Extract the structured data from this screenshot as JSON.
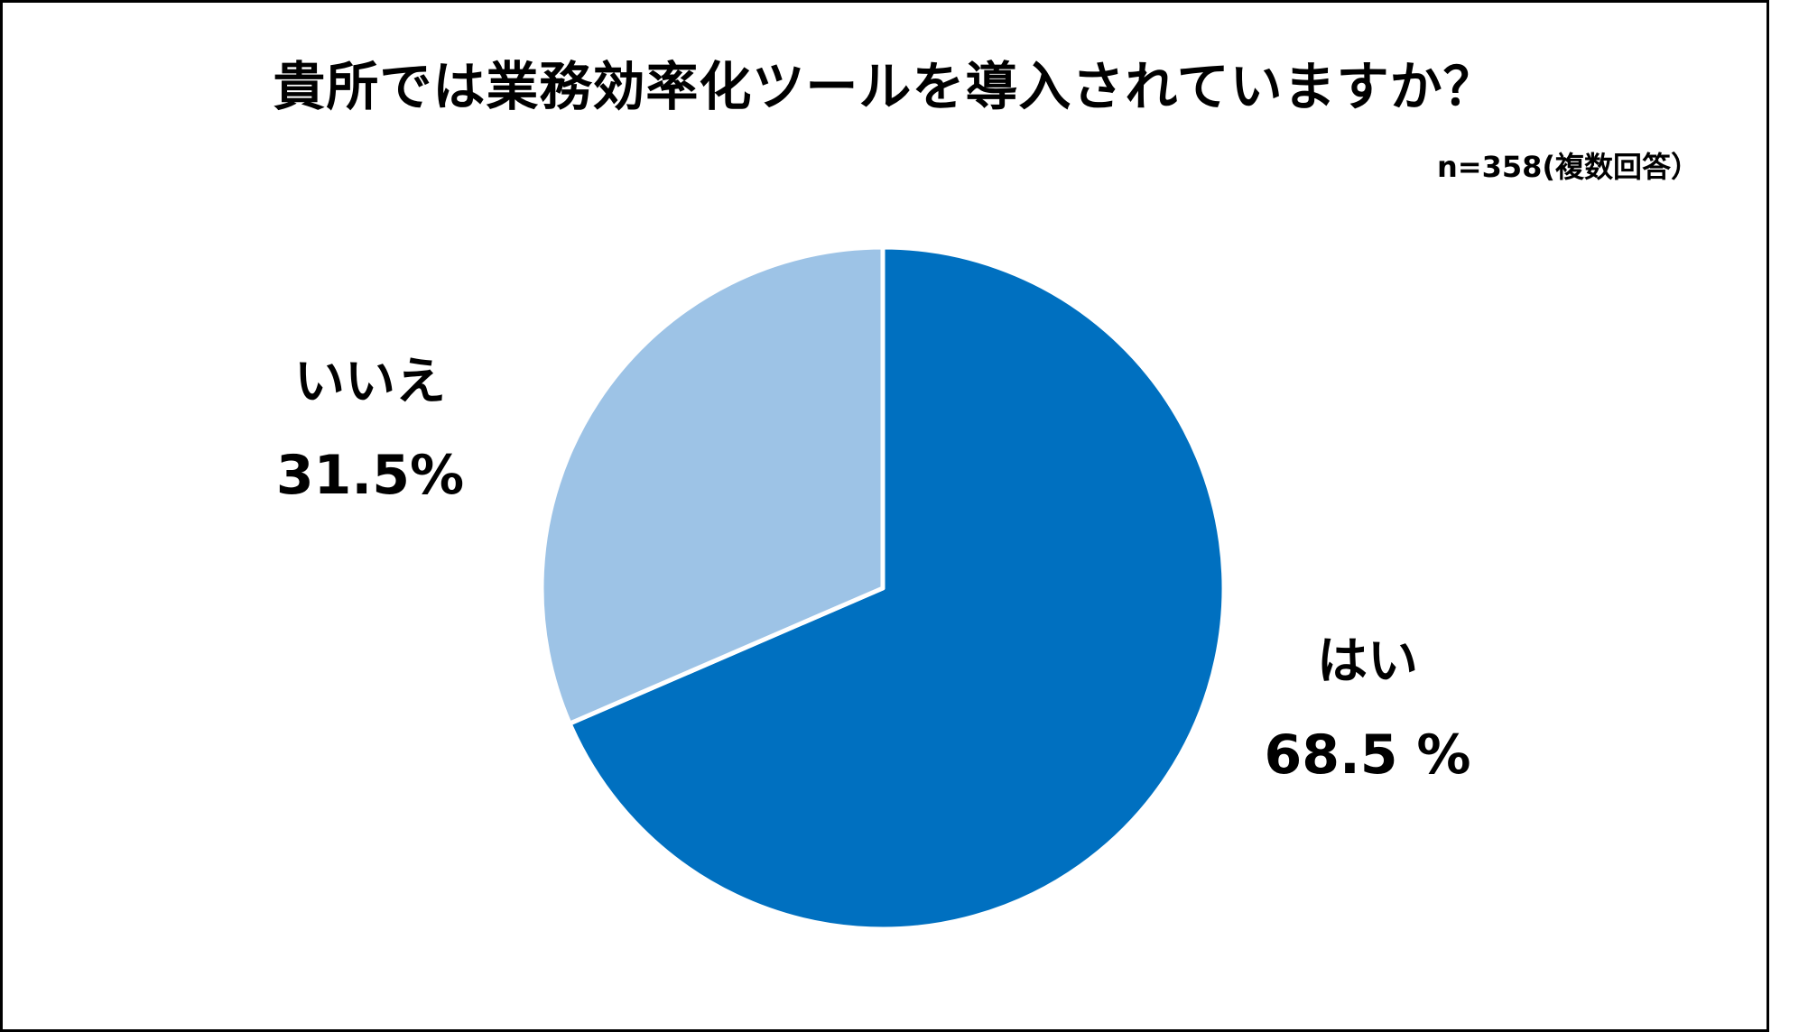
{
  "chart_data": {
    "type": "pie",
    "title": "貴所では業務効率化ツールを導入されていますか？",
    "subtitle": "n=358(複数回答）",
    "slices": [
      {
        "label": "はい",
        "value": 68.5,
        "value_label": "68.5 %",
        "color": "#0070C0"
      },
      {
        "label": "いいえ",
        "value": 31.5,
        "value_label": "31.5%",
        "color": "#9DC3E6"
      }
    ],
    "legend": "none",
    "slice_border_color": "#FFFFFF"
  }
}
